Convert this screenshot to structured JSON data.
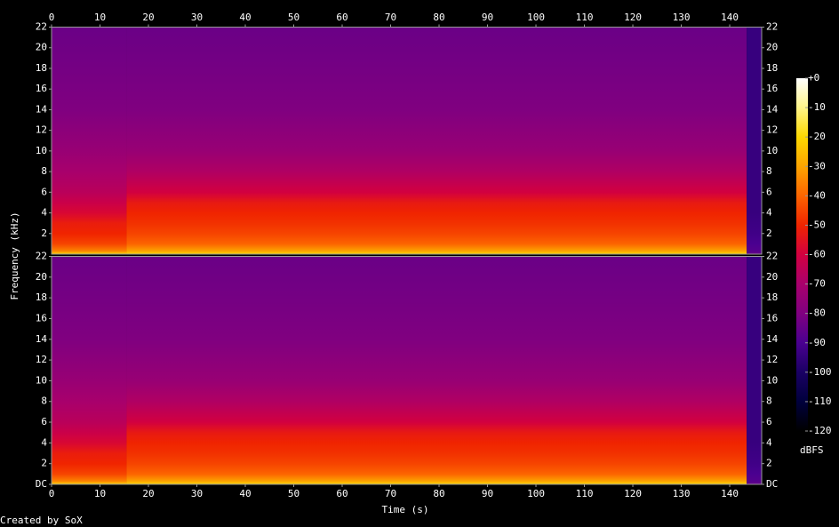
{
  "chart_data": {
    "type": "spectrogram",
    "xlabel": "Time (s)",
    "ylabel": "Frequency (kHz)",
    "footer": "Created by SoX",
    "xlim": [
      0,
      146.6
    ],
    "xticks": [
      0,
      10,
      20,
      30,
      40,
      50,
      60,
      70,
      80,
      90,
      100,
      110,
      120,
      130,
      140
    ],
    "ylim": [
      0,
      22
    ],
    "freqs": [
      0,
      0.3,
      1,
      2,
      3,
      4,
      5,
      6,
      8,
      10,
      14,
      22
    ],
    "colormap": [
      "#000000",
      "#00003c",
      "#1a0064",
      "#4a0090",
      "#800080",
      "#a8006c",
      "#d20040",
      "#f02400",
      "#fc6400",
      "#fca400",
      "#fcd800",
      "#fff488",
      "#ffffff"
    ],
    "channels": [
      {
        "yticks": [
          2,
          4,
          6,
          8,
          10,
          12,
          14,
          16,
          18,
          20,
          22
        ],
        "segments": [
          {
            "start": 0,
            "end": 15.5,
            "levels": [
              -20,
              -35,
              -45,
              -50,
              -52,
              -58,
              -62,
              -66,
              -70,
              -74,
              -80,
              -84
            ]
          },
          {
            "start": 15.5,
            "end": 143.5,
            "levels": [
              -20,
              -30,
              -40,
              -45,
              -48,
              -50,
              -53,
              -60,
              -68,
              -74,
              -80,
              -84
            ]
          },
          {
            "start": 143.5,
            "end": 146.6,
            "levels": [
              -85,
              -88,
              -90,
              -92,
              -93,
              -94,
              -94,
              -94,
              -94,
              -94,
              -94,
              -94
            ]
          }
        ]
      },
      {
        "yticks": [
          {
            "value": 0,
            "label": "DC"
          },
          2,
          4,
          6,
          8,
          10,
          12,
          14,
          16,
          18,
          20,
          22
        ],
        "segments": [
          {
            "start": 0,
            "end": 15.5,
            "levels": [
              -20,
              -35,
              -45,
              -50,
              -52,
              -58,
              -62,
              -66,
              -70,
              -74,
              -80,
              -84
            ]
          },
          {
            "start": 15.5,
            "end": 143.5,
            "levels": [
              -20,
              -30,
              -40,
              -45,
              -48,
              -50,
              -53,
              -60,
              -68,
              -74,
              -80,
              -84
            ]
          },
          {
            "start": 143.5,
            "end": 146.6,
            "levels": [
              -85,
              -88,
              -90,
              -92,
              -93,
              -94,
              -94,
              -94,
              -94,
              -94,
              -94,
              -94
            ]
          }
        ]
      }
    ],
    "colorbar": {
      "label": "dBFS",
      "lim": [
        -120,
        0
      ],
      "ticks": [
        {
          "value": 0,
          "label": "+0"
        },
        -10,
        -20,
        -30,
        -40,
        -50,
        -60,
        -70,
        -80,
        -90,
        -100,
        -110,
        -120
      ]
    }
  }
}
